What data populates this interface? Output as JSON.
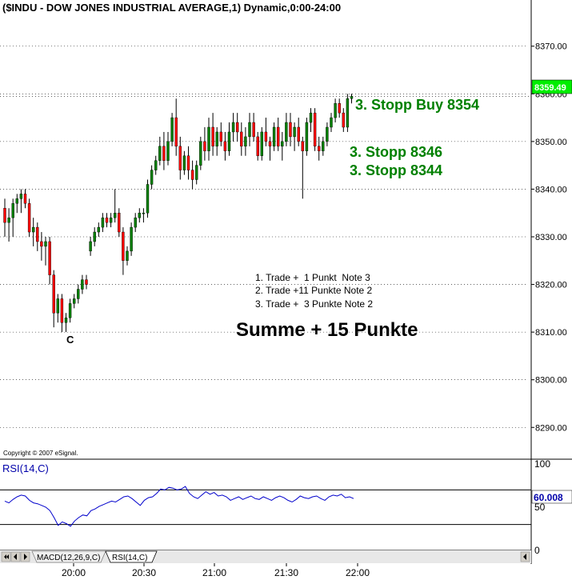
{
  "chart_title": "($INDU - DOW JONES INDUSTRIAL AVERAGE,1) Dynamic,0:00-24:00",
  "copyright": "Copyright © 2007 eSignal.",
  "colors": {
    "up": "#008000",
    "down": "#ff0000",
    "wick": "#000000",
    "note_green": "#008000",
    "rsi_line": "#0000cc",
    "rsi_label": "#0000aa",
    "last_price_bg": "#00ee00"
  },
  "annotations": {
    "stopp_buy": "3. Stopp Buy 8354",
    "stopp_1": "3. Stopp 8346",
    "stopp_2": "3. Stopp 8344",
    "trade_1": "1. Trade +  1 Punkt  Note 3",
    "trade_2": "2. Trade +11 Punkte Note 2",
    "trade_3": "3. Trade +  3 Punkte Note 2",
    "summe": "Summe + 15 Punkte",
    "marker_c": "C"
  },
  "tabs": [
    {
      "label": "MACD(12,26,9,C)",
      "active": false
    },
    {
      "label": "RSI(14,C)",
      "active": true
    }
  ],
  "chart_data": [
    {
      "type": "candlestick",
      "title": "($INDU - DOW JONES INDUSTRIAL AVERAGE,1) Dynamic,0:00-24:00",
      "ylim": [
        8284,
        8376
      ],
      "yticks": [
        "8370.00",
        "8360.00",
        "8350.00",
        "8340.00",
        "8330.00",
        "8320.00",
        "8310.00",
        "8300.00",
        "8290.00"
      ],
      "last_price_label": "8359.49",
      "grid": true,
      "ohlc": [
        [
          8336,
          8338,
          8330,
          8333
        ],
        [
          8333,
          8336,
          8329,
          8334
        ],
        [
          8334,
          8338,
          8330,
          8337
        ],
        [
          8337,
          8339,
          8335,
          8338
        ],
        [
          8338,
          8340,
          8335,
          8339
        ],
        [
          8339,
          8340,
          8336,
          8337
        ],
        [
          8337,
          8338,
          8330,
          8331
        ],
        [
          8331,
          8334,
          8328,
          8332
        ],
        [
          8332,
          8333,
          8327,
          8329
        ],
        [
          8329,
          8331,
          8325,
          8328
        ],
        [
          8328,
          8330,
          8324,
          8329
        ],
        [
          8329,
          8330,
          8320,
          8322
        ],
        [
          8322,
          8323,
          8311,
          8314
        ],
        [
          8314,
          8318,
          8312,
          8317
        ],
        [
          8317,
          8318,
          8310,
          8312
        ],
        [
          8312,
          8314,
          8310,
          8313
        ],
        [
          8313,
          8317,
          8312,
          8316
        ],
        [
          8316,
          8318,
          8315,
          8317
        ],
        [
          8317,
          8320,
          8316,
          8319
        ],
        [
          8319,
          8322,
          8318,
          8321
        ],
        [
          8321,
          8322,
          8319,
          8320
        ],
        [
          8327,
          8330,
          8326,
          8329
        ],
        [
          8329,
          8332,
          8328,
          8331
        ],
        [
          8331,
          8333,
          8330,
          8332
        ],
        [
          8332,
          8335,
          8331,
          8334
        ],
        [
          8334,
          8335,
          8332,
          8333
        ],
        [
          8333,
          8335,
          8332,
          8334
        ],
        [
          8334,
          8340,
          8333,
          8335
        ],
        [
          8335,
          8336,
          8330,
          8331
        ],
        [
          8331,
          8332,
          8322,
          8325
        ],
        [
          8325,
          8328,
          8324,
          8327
        ],
        [
          8327,
          8333,
          8326,
          8332
        ],
        [
          8332,
          8335,
          8331,
          8334
        ],
        [
          8334,
          8336,
          8333,
          8335
        ],
        [
          8335,
          8336,
          8333,
          8335
        ],
        [
          8335,
          8342,
          8334,
          8341
        ],
        [
          8341,
          8345,
          8340,
          8344
        ],
        [
          8344,
          8347,
          8343,
          8346
        ],
        [
          8346,
          8351,
          8345,
          8349
        ],
        [
          8349,
          8352,
          8344,
          8346
        ],
        [
          8346,
          8352,
          8345,
          8350
        ],
        [
          8350,
          8356,
          8349,
          8355
        ],
        [
          8355,
          8359,
          8347,
          8349
        ],
        [
          8349,
          8351,
          8342,
          8344
        ],
        [
          8344,
          8348,
          8343,
          8347
        ],
        [
          8347,
          8349,
          8342,
          8344
        ],
        [
          8344,
          8346,
          8340,
          8342
        ],
        [
          8342,
          8346,
          8341,
          8345
        ],
        [
          8345,
          8351,
          8344,
          8350
        ],
        [
          8350,
          8353,
          8346,
          8348
        ],
        [
          8348,
          8355,
          8346,
          8353
        ],
        [
          8353,
          8356,
          8347,
          8349
        ],
        [
          8349,
          8353,
          8347,
          8352
        ],
        [
          8352,
          8354,
          8349,
          8350
        ],
        [
          8350,
          8352,
          8346,
          8348
        ],
        [
          8348,
          8354,
          8347,
          8352
        ],
        [
          8352,
          8356,
          8350,
          8354
        ],
        [
          8354,
          8356,
          8350,
          8352
        ],
        [
          8352,
          8354,
          8347,
          8349
        ],
        [
          8349,
          8353,
          8347,
          8351
        ],
        [
          8351,
          8356,
          8349,
          8354
        ],
        [
          8354,
          8356,
          8350,
          8351
        ],
        [
          8351,
          8352,
          8346,
          8347
        ],
        [
          8347,
          8353,
          8346,
          8352
        ],
        [
          8352,
          8355,
          8349,
          8350
        ],
        [
          8350,
          8351,
          8346,
          8349
        ],
        [
          8349,
          8354,
          8348,
          8353
        ],
        [
          8353,
          8355,
          8348,
          8349
        ],
        [
          8349,
          8352,
          8346,
          8350
        ],
        [
          8350,
          8356,
          8349,
          8354
        ],
        [
          8354,
          8356,
          8349,
          8351
        ],
        [
          8351,
          8354,
          8348,
          8353
        ],
        [
          8353,
          8355,
          8349,
          8350
        ],
        [
          8350,
          8351,
          8338,
          8348
        ],
        [
          8348,
          8355,
          8347,
          8354
        ],
        [
          8354,
          8357,
          8352,
          8356
        ],
        [
          8356,
          8357,
          8348,
          8349
        ],
        [
          8349,
          8351,
          8346,
          8348
        ],
        [
          8348,
          8351,
          8347,
          8350
        ],
        [
          8350,
          8354,
          8349,
          8353
        ],
        [
          8353,
          8356,
          8352,
          8355
        ],
        [
          8355,
          8359,
          8354,
          8358
        ],
        [
          8358,
          8359,
          8355,
          8356
        ],
        [
          8356,
          8357,
          8352,
          8353
        ],
        [
          8353,
          8360,
          8352,
          8359
        ],
        [
          8359,
          8360,
          8358,
          8359.49
        ]
      ]
    },
    {
      "type": "line",
      "title": "RSI(14,C)",
      "ylim": [
        0,
        100
      ],
      "yticks": [
        "100",
        "50",
        "0"
      ],
      "reference_lines": [
        70,
        30
      ],
      "last_value_label": "60.008",
      "values": [
        57,
        55,
        59,
        62,
        64,
        63,
        58,
        55,
        54,
        52,
        50,
        46,
        38,
        29,
        33,
        31,
        28,
        34,
        38,
        41,
        40,
        46,
        48,
        51,
        53,
        55,
        57,
        56,
        59,
        62,
        63,
        60,
        56,
        52,
        58,
        61,
        62,
        66,
        71,
        70,
        73,
        72,
        70,
        71,
        74,
        66,
        62,
        60,
        64,
        68,
        65,
        67,
        63,
        64,
        62,
        58,
        60,
        62,
        59,
        61,
        63,
        60,
        59,
        62,
        60,
        58,
        61,
        63,
        61,
        58,
        56,
        59,
        63,
        61,
        60,
        62,
        63,
        60,
        58,
        62,
        64,
        63,
        65,
        61,
        62,
        60.008
      ],
      "x_tick_labels": [
        "20:00",
        "20:30",
        "21:00",
        "21:30",
        "22:00"
      ]
    }
  ]
}
